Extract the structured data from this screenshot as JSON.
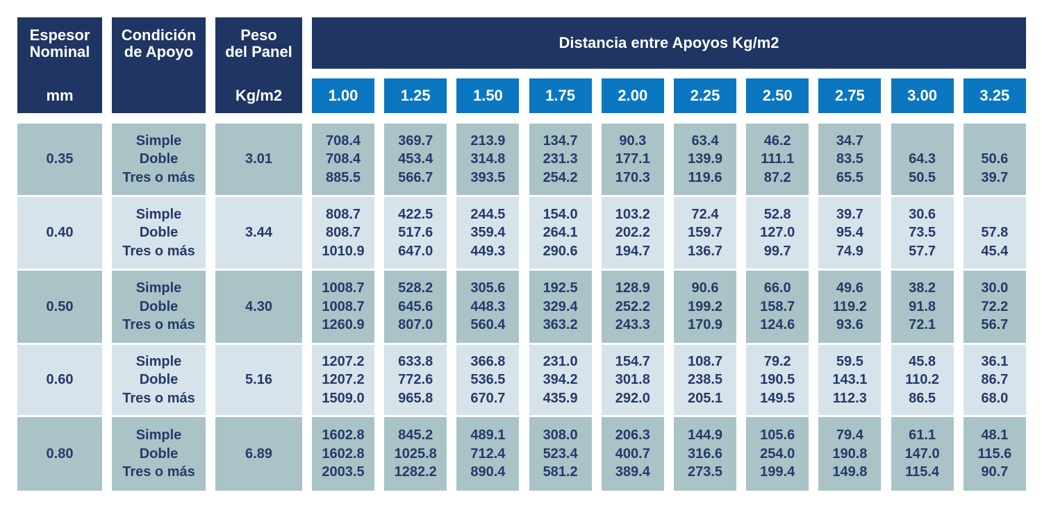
{
  "header": {
    "espesor": {
      "lines": [
        "Espesor",
        "Nominal"
      ],
      "unit": "mm"
    },
    "condicion": {
      "lines": [
        "Condición",
        "de Apoyo"
      ]
    },
    "peso": {
      "lines": [
        "Peso",
        "del Panel"
      ],
      "unit": "Kg/m2"
    },
    "distancia": {
      "title": "Distancia entre Apoyos Kg/m2",
      "columns": [
        "1.00",
        "1.25",
        "1.50",
        "1.75",
        "2.00",
        "2.25",
        "2.50",
        "2.75",
        "3.00",
        "3.25"
      ]
    }
  },
  "table": {
    "rows": [
      {
        "espesor": "0.35",
        "conditions": [
          "Simple",
          "Doble",
          "Tres o más"
        ],
        "peso": "3.01",
        "values": [
          [
            "708.4",
            "708.4",
            "885.5"
          ],
          [
            "369.7",
            "453.4",
            "566.7"
          ],
          [
            "213.9",
            "314.8",
            "393.5"
          ],
          [
            "134.7",
            "231.3",
            "254.2"
          ],
          [
            "90.3",
            "177.1",
            "170.3"
          ],
          [
            "63.4",
            "139.9",
            "119.6"
          ],
          [
            "46.2",
            "111.1",
            "87.2"
          ],
          [
            "34.7",
            "83.5",
            "65.5"
          ],
          [
            null,
            "64.3",
            "50.5"
          ],
          [
            null,
            "50.6",
            "39.7"
          ]
        ]
      },
      {
        "espesor": "0.40",
        "conditions": [
          "Simple",
          "Doble",
          "Tres o más"
        ],
        "peso": "3.44",
        "values": [
          [
            "808.7",
            "808.7",
            "1010.9"
          ],
          [
            "422.5",
            "517.6",
            "647.0"
          ],
          [
            "244.5",
            "359.4",
            "449.3"
          ],
          [
            "154.0",
            "264.1",
            "290.6"
          ],
          [
            "103.2",
            "202.2",
            "194.7"
          ],
          [
            "72.4",
            "159.7",
            "136.7"
          ],
          [
            "52.8",
            "127.0",
            "99.7"
          ],
          [
            "39.7",
            "95.4",
            "74.9"
          ],
          [
            "30.6",
            "73.5",
            "57.7"
          ],
          [
            null,
            "57.8",
            "45.4"
          ]
        ]
      },
      {
        "espesor": "0.50",
        "conditions": [
          "Simple",
          "Doble",
          "Tres o más"
        ],
        "peso": "4.30",
        "values": [
          [
            "1008.7",
            "1008.7",
            "1260.9"
          ],
          [
            "528.2",
            "645.6",
            "807.0"
          ],
          [
            "305.6",
            "448.3",
            "560.4"
          ],
          [
            "192.5",
            "329.4",
            "363.2"
          ],
          [
            "128.9",
            "252.2",
            "243.3"
          ],
          [
            "90.6",
            "199.2",
            "170.9"
          ],
          [
            "66.0",
            "158.7",
            "124.6"
          ],
          [
            "49.6",
            "119.2",
            "93.6"
          ],
          [
            "38.2",
            "91.8",
            "72.1"
          ],
          [
            "30.0",
            "72.2",
            "56.7"
          ]
        ]
      },
      {
        "espesor": "0.60",
        "conditions": [
          "Simple",
          "Doble",
          "Tres o más"
        ],
        "peso": "5.16",
        "values": [
          [
            "1207.2",
            "1207.2",
            "1509.0"
          ],
          [
            "633.8",
            "772.6",
            "965.8"
          ],
          [
            "366.8",
            "536.5",
            "670.7"
          ],
          [
            "231.0",
            "394.2",
            "435.9"
          ],
          [
            "154.7",
            "301.8",
            "292.0"
          ],
          [
            "108.7",
            "238.5",
            "205.1"
          ],
          [
            "79.2",
            "190.5",
            "149.5"
          ],
          [
            "59.5",
            "143.1",
            "112.3"
          ],
          [
            "45.8",
            "110.2",
            "86.5"
          ],
          [
            "36.1",
            "86.7",
            "68.0"
          ]
        ]
      },
      {
        "espesor": "0.80",
        "conditions": [
          "Simple",
          "Doble",
          "Tres o más"
        ],
        "peso": "6.89",
        "values": [
          [
            "1602.8",
            "1602.8",
            "2003.5"
          ],
          [
            "845.2",
            "1025.8",
            "1282.2"
          ],
          [
            "489.1",
            "712.4",
            "890.4"
          ],
          [
            "308.0",
            "523.4",
            "581.2"
          ],
          [
            "206.3",
            "400.7",
            "389.4"
          ],
          [
            "144.9",
            "316.6",
            "273.5"
          ],
          [
            "105.6",
            "254.0",
            "199.4"
          ],
          [
            "79.4",
            "190.8",
            "149.8"
          ],
          [
            "61.1",
            "147.0",
            "115.4"
          ],
          [
            "48.1",
            "115.6",
            "90.7"
          ]
        ]
      }
    ]
  }
}
